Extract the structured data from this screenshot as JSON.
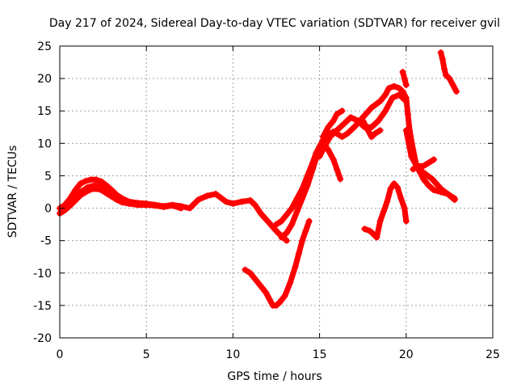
{
  "chart_data": {
    "type": "scatter",
    "title": "Day 217 of 2024, Sidereal Day-to-day VTEC variation (SDTVAR) for receiver gvil",
    "xlabel": "GPS time / hours",
    "ylabel": "SDTVAR / TECUs",
    "xlim": [
      0,
      25
    ],
    "ylim": [
      -20,
      25
    ],
    "x_ticks": [
      0,
      5,
      10,
      15,
      20,
      25
    ],
    "y_ticks": [
      -20,
      -15,
      -10,
      -5,
      0,
      5,
      10,
      15,
      20,
      25
    ],
    "grid": true,
    "marker": "plus",
    "color": "#ff0000",
    "series": [
      {
        "x": [
          0.0,
          0.3,
          0.6,
          0.9,
          1.2,
          1.5,
          1.8,
          2.1,
          2.4,
          2.7,
          3.0,
          3.3,
          3.6,
          4.0,
          4.5,
          5.0,
          5.5,
          6.0,
          6.5,
          7.0,
          7.5,
          8.0,
          8.5,
          9.0,
          9.3,
          9.6,
          10.0,
          10.5,
          11.0,
          11.3,
          11.6,
          12.0,
          12.3,
          12.6,
          12.9,
          13.1
        ],
        "y": [
          0,
          0.5,
          1.5,
          2.8,
          3.8,
          4.2,
          4.4,
          4.4,
          4.1,
          3.5,
          2.8,
          2.0,
          1.5,
          1.0,
          0.8,
          0.7,
          0.5,
          0.3,
          0.5,
          0.3,
          0,
          1.3,
          1.9,
          2.2,
          1.6,
          1.0,
          0.7,
          1.0,
          1.2,
          0.4,
          -0.8,
          -2.0,
          -2.9,
          -3.8,
          -4.5,
          -5.0
        ]
      },
      {
        "x": [
          0.0,
          0.3,
          0.6,
          0.9,
          1.2,
          1.5,
          1.8,
          2.1,
          2.4,
          2.7,
          3.0,
          3.3,
          3.6,
          4.0,
          4.5,
          5.0,
          5.5,
          6.0,
          6.5,
          7.0
        ],
        "y": [
          -0.8,
          -0.3,
          0.4,
          1.2,
          2.0,
          2.5,
          2.9,
          3.0,
          2.8,
          2.3,
          1.8,
          1.3,
          0.9,
          0.7,
          0.5,
          0.5,
          0.4,
          0.2,
          0.4,
          0.0
        ]
      },
      {
        "x": [
          0.4,
          0.8,
          1.2,
          1.6,
          2.0,
          2.4,
          2.8,
          3.2
        ],
        "y": [
          0.3,
          1.5,
          2.5,
          3.2,
          3.5,
          3.3,
          2.9,
          2.2
        ]
      },
      {
        "x": [
          12.5,
          12.8,
          13.1,
          13.4,
          13.7,
          14.0,
          14.3,
          14.6,
          14.8,
          15.0,
          15.2,
          15.4,
          15.6,
          15.8,
          16.0,
          16.3,
          16.6,
          17.0,
          17.5,
          18.0,
          18.5,
          18.8,
          19.0,
          19.3,
          19.6,
          19.8,
          20.0,
          20.1,
          20.2,
          20.4,
          20.6,
          20.8,
          21.0,
          21.3,
          21.6,
          22.0,
          22.4,
          22.8
        ],
        "y": [
          -2.5,
          -2.0,
          -1.0,
          0.0,
          1.5,
          3.0,
          5.0,
          7.0,
          8.5,
          9.5,
          10.5,
          11.0,
          11.5,
          11.8,
          11.5,
          11.0,
          11.5,
          12.5,
          14.0,
          15.5,
          16.5,
          17.5,
          18.5,
          18.8,
          18.5,
          18.0,
          17.0,
          14.5,
          12.0,
          9.0,
          6.5,
          5.5,
          4.5,
          3.5,
          2.8,
          2.5,
          2.2,
          1.3
        ]
      },
      {
        "x": [
          12.8,
          13.1,
          13.4,
          13.7,
          14.0,
          14.3,
          14.6,
          14.9,
          15.2,
          15.5,
          15.8,
          16.0,
          16.2
        ],
        "y": [
          -4.5,
          -3.8,
          -2.5,
          -0.5,
          1.5,
          3.5,
          6.0,
          8.5,
          10.0,
          9.0,
          7.5,
          6.0,
          4.5
        ]
      },
      {
        "x": [
          15.0,
          15.3,
          15.6,
          16.0,
          16.4,
          16.8,
          17.2,
          17.6,
          18.0,
          18.4,
          18.8,
          19.2,
          19.6,
          20.0
        ],
        "y": [
          8.0,
          9.5,
          11.0,
          12.0,
          13.0,
          14.0,
          13.5,
          12.5,
          12.5,
          13.5,
          15.0,
          17.0,
          17.5,
          16.5
        ]
      },
      {
        "x": [
          15.2,
          15.5,
          15.8,
          16.0,
          16.3
        ],
        "y": [
          11.0,
          12.5,
          13.5,
          14.5,
          15.0
        ]
      },
      {
        "x": [
          17.5,
          17.8,
          18.0,
          18.2,
          18.5
        ],
        "y": [
          13.5,
          12.0,
          11.0,
          11.5,
          12.0
        ]
      },
      {
        "x": [
          20.0,
          20.3,
          20.6,
          20.8,
          21.0,
          21.5,
          22.0,
          22.5,
          22.8
        ],
        "y": [
          12.0,
          8.0,
          6.5,
          5.8,
          5.5,
          4.5,
          3.0,
          2.0,
          1.5
        ]
      },
      {
        "x": [
          20.4,
          20.7,
          21.0,
          21.3,
          21.6
        ],
        "y": [
          6.0,
          6.5,
          6.5,
          7.0,
          7.5
        ]
      },
      {
        "x": [
          19.8,
          19.9,
          20.0
        ],
        "y": [
          21.0,
          20.0,
          19.0
        ]
      },
      {
        "x": [
          22.0,
          22.1,
          22.2,
          22.3,
          22.5,
          22.7,
          22.9
        ],
        "y": [
          24.0,
          23.0,
          21.5,
          20.5,
          20.0,
          19.0,
          18.0
        ]
      },
      {
        "x": [
          10.7,
          11.0,
          11.3,
          11.6,
          11.9,
          12.1,
          12.3,
          12.5,
          12.7,
          13.0,
          13.3,
          13.6,
          13.8,
          14.0,
          14.2,
          14.4
        ],
        "y": [
          -9.5,
          -10.0,
          -11.0,
          -12.0,
          -13.0,
          -14.0,
          -15.0,
          -15.0,
          -14.5,
          -13.5,
          -11.5,
          -9.0,
          -7.0,
          -5.0,
          -3.5,
          -2.0
        ]
      },
      {
        "x": [
          17.6,
          17.9,
          18.1,
          18.3,
          18.5,
          18.7,
          18.9,
          19.1,
          19.3,
          19.5,
          19.7,
          19.9,
          20.0
        ],
        "y": [
          -3.2,
          -3.5,
          -4.0,
          -4.5,
          -2.0,
          -0.5,
          1.0,
          3.0,
          3.8,
          3.2,
          1.5,
          0.0,
          -2.0
        ]
      }
    ]
  }
}
